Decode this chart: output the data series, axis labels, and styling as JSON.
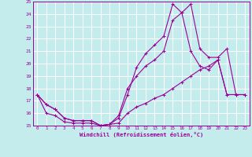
{
  "xlabel": "Windchill (Refroidissement éolien,°C)",
  "xlim": [
    -0.5,
    23.5
  ],
  "ylim": [
    15,
    25
  ],
  "xticks": [
    0,
    1,
    2,
    3,
    4,
    5,
    6,
    7,
    8,
    9,
    10,
    11,
    12,
    13,
    14,
    15,
    16,
    17,
    18,
    19,
    20,
    21,
    22,
    23
  ],
  "yticks": [
    15,
    16,
    17,
    18,
    19,
    20,
    21,
    22,
    23,
    24,
    25
  ],
  "background_color": "#c5ecec",
  "grid_color": "#ffffff",
  "line_color": "#990099",
  "line1_y": [
    17.5,
    16.7,
    16.3,
    15.6,
    15.4,
    15.4,
    15.4,
    15.0,
    15.1,
    15.6,
    17.5,
    19.7,
    20.8,
    21.5,
    22.2,
    24.8,
    24.1,
    24.8,
    21.2,
    20.5,
    20.5,
    21.2,
    17.5,
    17.5
  ],
  "line2_y": [
    17.5,
    16.7,
    16.3,
    15.6,
    15.4,
    15.4,
    15.4,
    15.0,
    15.1,
    15.8,
    18.0,
    19.0,
    19.8,
    20.3,
    21.0,
    23.5,
    24.1,
    21.0,
    19.8,
    19.5,
    20.3,
    17.5,
    17.5,
    17.5
  ],
  "line3_y": [
    17.5,
    16.0,
    15.8,
    15.3,
    15.2,
    15.2,
    15.2,
    15.0,
    15.1,
    15.2,
    16.0,
    16.5,
    16.8,
    17.2,
    17.5,
    18.0,
    18.5,
    19.0,
    19.5,
    19.8,
    20.3,
    17.5,
    17.5,
    17.5
  ]
}
